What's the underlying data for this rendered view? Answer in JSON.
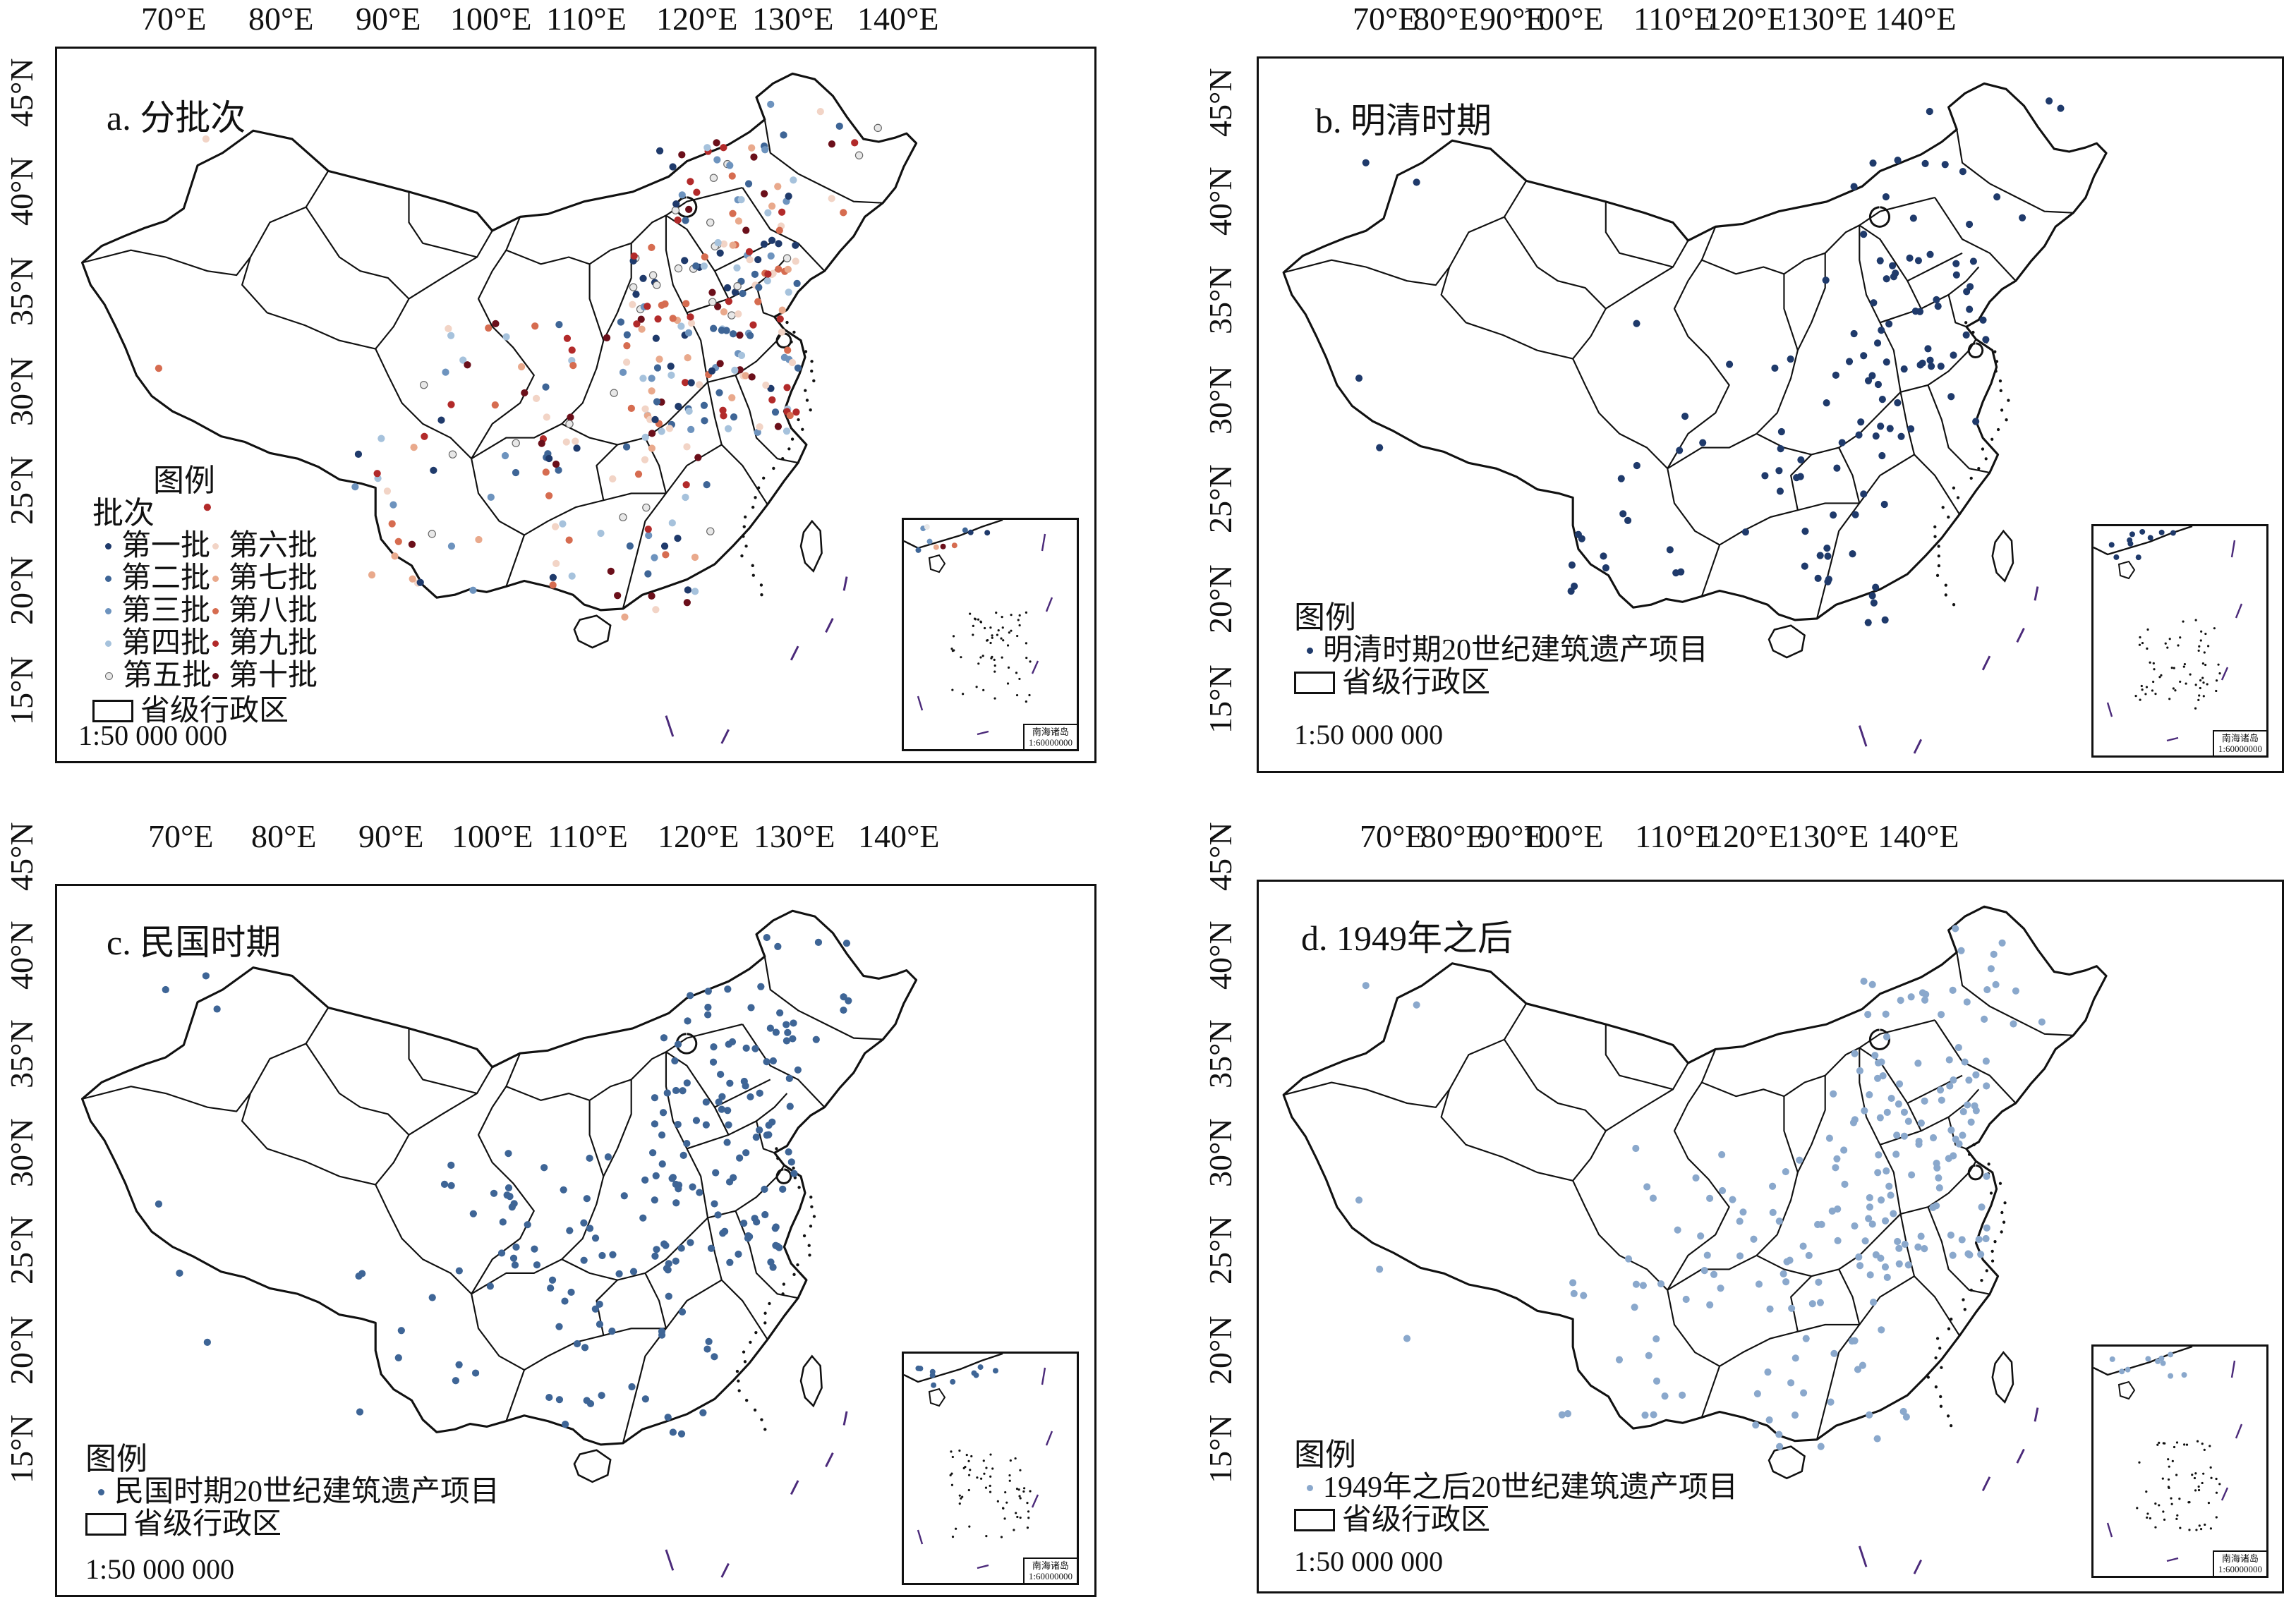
{
  "lon_ticks": [
    "70°E",
    "80°E",
    "90°E",
    "100°E",
    "110°E",
    "120°E",
    "130°E",
    "140°E"
  ],
  "lat_ticks": [
    "45°N",
    "40°N",
    "35°N",
    "30°N",
    "25°N",
    "20°N",
    "15°N"
  ],
  "panels": [
    {
      "id": "a",
      "title": "a. 分批次",
      "legend_title": "图例",
      "legend_subtitle": "批次",
      "batches": [
        {
          "label": "第一批",
          "color": "#1f3a6b"
        },
        {
          "label": "第六批",
          "color": "#f2d4c6"
        },
        {
          "label": "第二批",
          "color": "#3e6596"
        },
        {
          "label": "第七批",
          "color": "#e9a98c"
        },
        {
          "label": "第三批",
          "color": "#6d93be"
        },
        {
          "label": "第八批",
          "color": "#d66c50"
        },
        {
          "label": "第四批",
          "color": "#a6c2dc"
        },
        {
          "label": "第九批",
          "color": "#b22a2a"
        },
        {
          "label": "第五批",
          "color": "#e8e8e8"
        },
        {
          "label": "第十批",
          "color": "#6b0f1a"
        }
      ],
      "province_label": "省级行政区",
      "scale": "1:50 000 000",
      "inset_label_line1": "南海诸岛",
      "inset_label_line2": "1:60000000",
      "dot_count": 320
    },
    {
      "id": "b",
      "title": "b. 明清时期",
      "legend_title": "图例",
      "series_label": "明清时期20世纪建筑遗产项目",
      "series_color": "#1f3a6b",
      "province_label": "省级行政区",
      "scale": "1:50 000 000",
      "inset_label_line1": "南海诸岛",
      "inset_label_line2": "1:60000000",
      "dot_count": 120
    },
    {
      "id": "c",
      "title": "c. 民国时期",
      "legend_title": "图例",
      "series_label": "民国时期20世纪建筑遗产项目",
      "series_color": "#3e6596",
      "province_label": "省级行政区",
      "scale": "1:50 000 000",
      "inset_label_line1": "南海诸岛",
      "inset_label_line2": "1:60000000",
      "dot_count": 200
    },
    {
      "id": "d",
      "title": "d. 1949年之后",
      "legend_title": "图例",
      "series_label": "1949年之后20世纪建筑遗产项目",
      "series_color": "#8aa8cc",
      "province_label": "省级行政区",
      "scale": "1:50 000 000",
      "inset_label_line1": "南海诸岛",
      "inset_label_line2": "1:60000000",
      "dot_count": 210
    }
  ]
}
